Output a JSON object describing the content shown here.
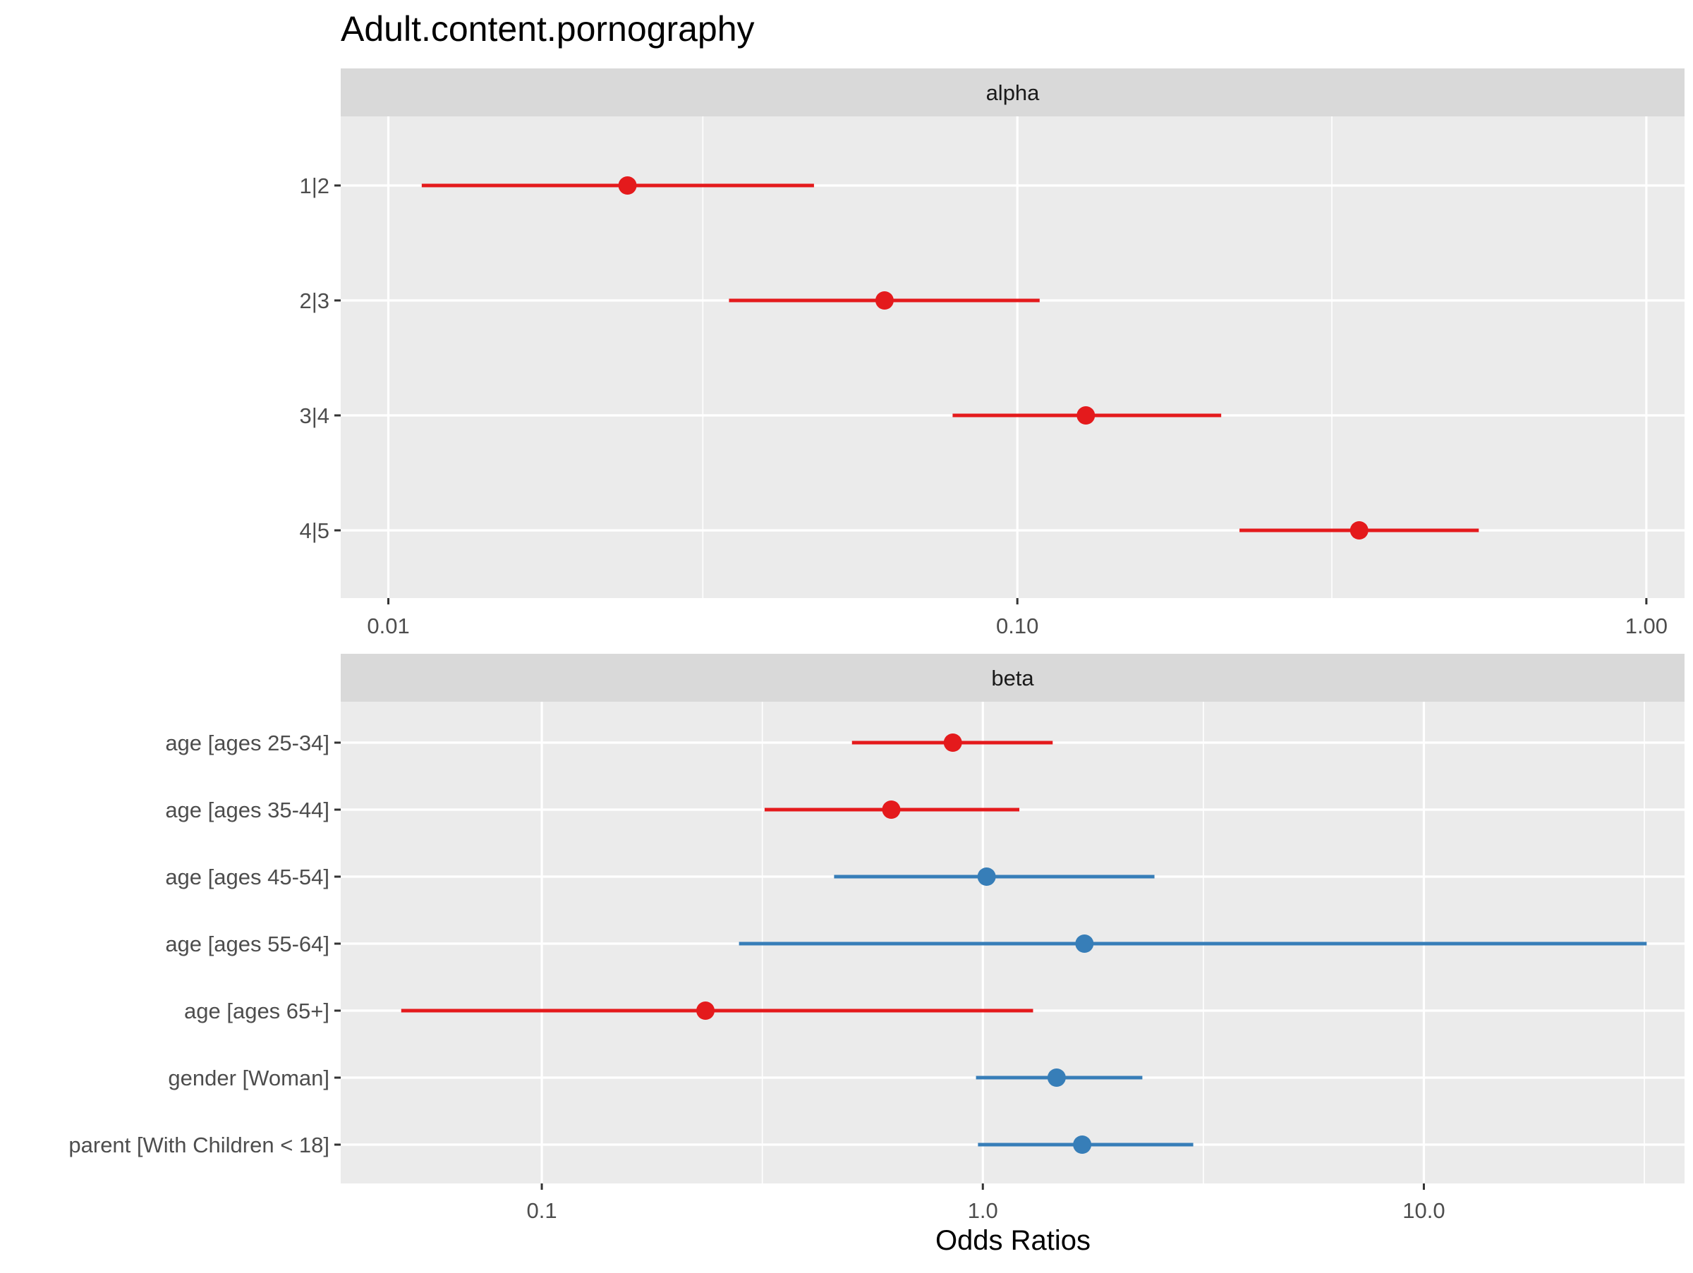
{
  "chart_data": {
    "type": "scatter",
    "title": "Adult.content.pornography",
    "xlabel": "Odds Ratios",
    "log_scale_x": true,
    "grid": true,
    "colors": {
      "negative": "#E41A1C",
      "positive": "#377EB8",
      "panel_bg": "#EBEBEB",
      "strip_bg": "#D9D9D9",
      "grid": "#FFFFFF"
    },
    "panels": [
      {
        "strip": "alpha",
        "xlim": [
          0.0084,
          1.15
        ],
        "xticks": [
          0.01,
          0.1,
          1.0
        ],
        "xtick_labels": [
          "0.01",
          "0.10",
          "1.00"
        ],
        "points": [
          {
            "label": "1|2",
            "estimate": 0.024,
            "low": 0.0113,
            "high": 0.0475,
            "direction": "negative"
          },
          {
            "label": "2|3",
            "estimate": 0.0615,
            "low": 0.0348,
            "high": 0.1085,
            "direction": "negative"
          },
          {
            "label": "3|4",
            "estimate": 0.1285,
            "low": 0.0789,
            "high": 0.2109,
            "direction": "negative"
          },
          {
            "label": "4|5",
            "estimate": 0.3495,
            "low": 0.2255,
            "high": 0.5415,
            "direction": "negative"
          }
        ]
      },
      {
        "strip": "beta",
        "xlim": [
          0.035,
          39.0
        ],
        "xticks": [
          0.1,
          1.0,
          10.0
        ],
        "xtick_labels": [
          "0.1",
          "1.0",
          "10.0"
        ],
        "points": [
          {
            "label": "age [ages 25-34]",
            "estimate": 0.855,
            "low": 0.505,
            "high": 1.44,
            "direction": "negative"
          },
          {
            "label": "age [ages 35-44]",
            "estimate": 0.62,
            "low": 0.32,
            "high": 1.21,
            "direction": "negative"
          },
          {
            "label": "age [ages 45-54]",
            "estimate": 1.02,
            "low": 0.46,
            "high": 2.45,
            "direction": "positive"
          },
          {
            "label": "age [ages 55-64]",
            "estimate": 1.7,
            "low": 0.28,
            "high": 32.0,
            "direction": "positive"
          },
          {
            "label": "age [ages 65+]",
            "estimate": 0.235,
            "low": 0.048,
            "high": 1.3,
            "direction": "negative"
          },
          {
            "label": "gender [Woman]",
            "estimate": 1.47,
            "low": 0.965,
            "high": 2.3,
            "direction": "positive"
          },
          {
            "label": "parent [With Children < 18]",
            "estimate": 1.68,
            "low": 0.975,
            "high": 3.0,
            "direction": "positive"
          }
        ]
      }
    ]
  }
}
